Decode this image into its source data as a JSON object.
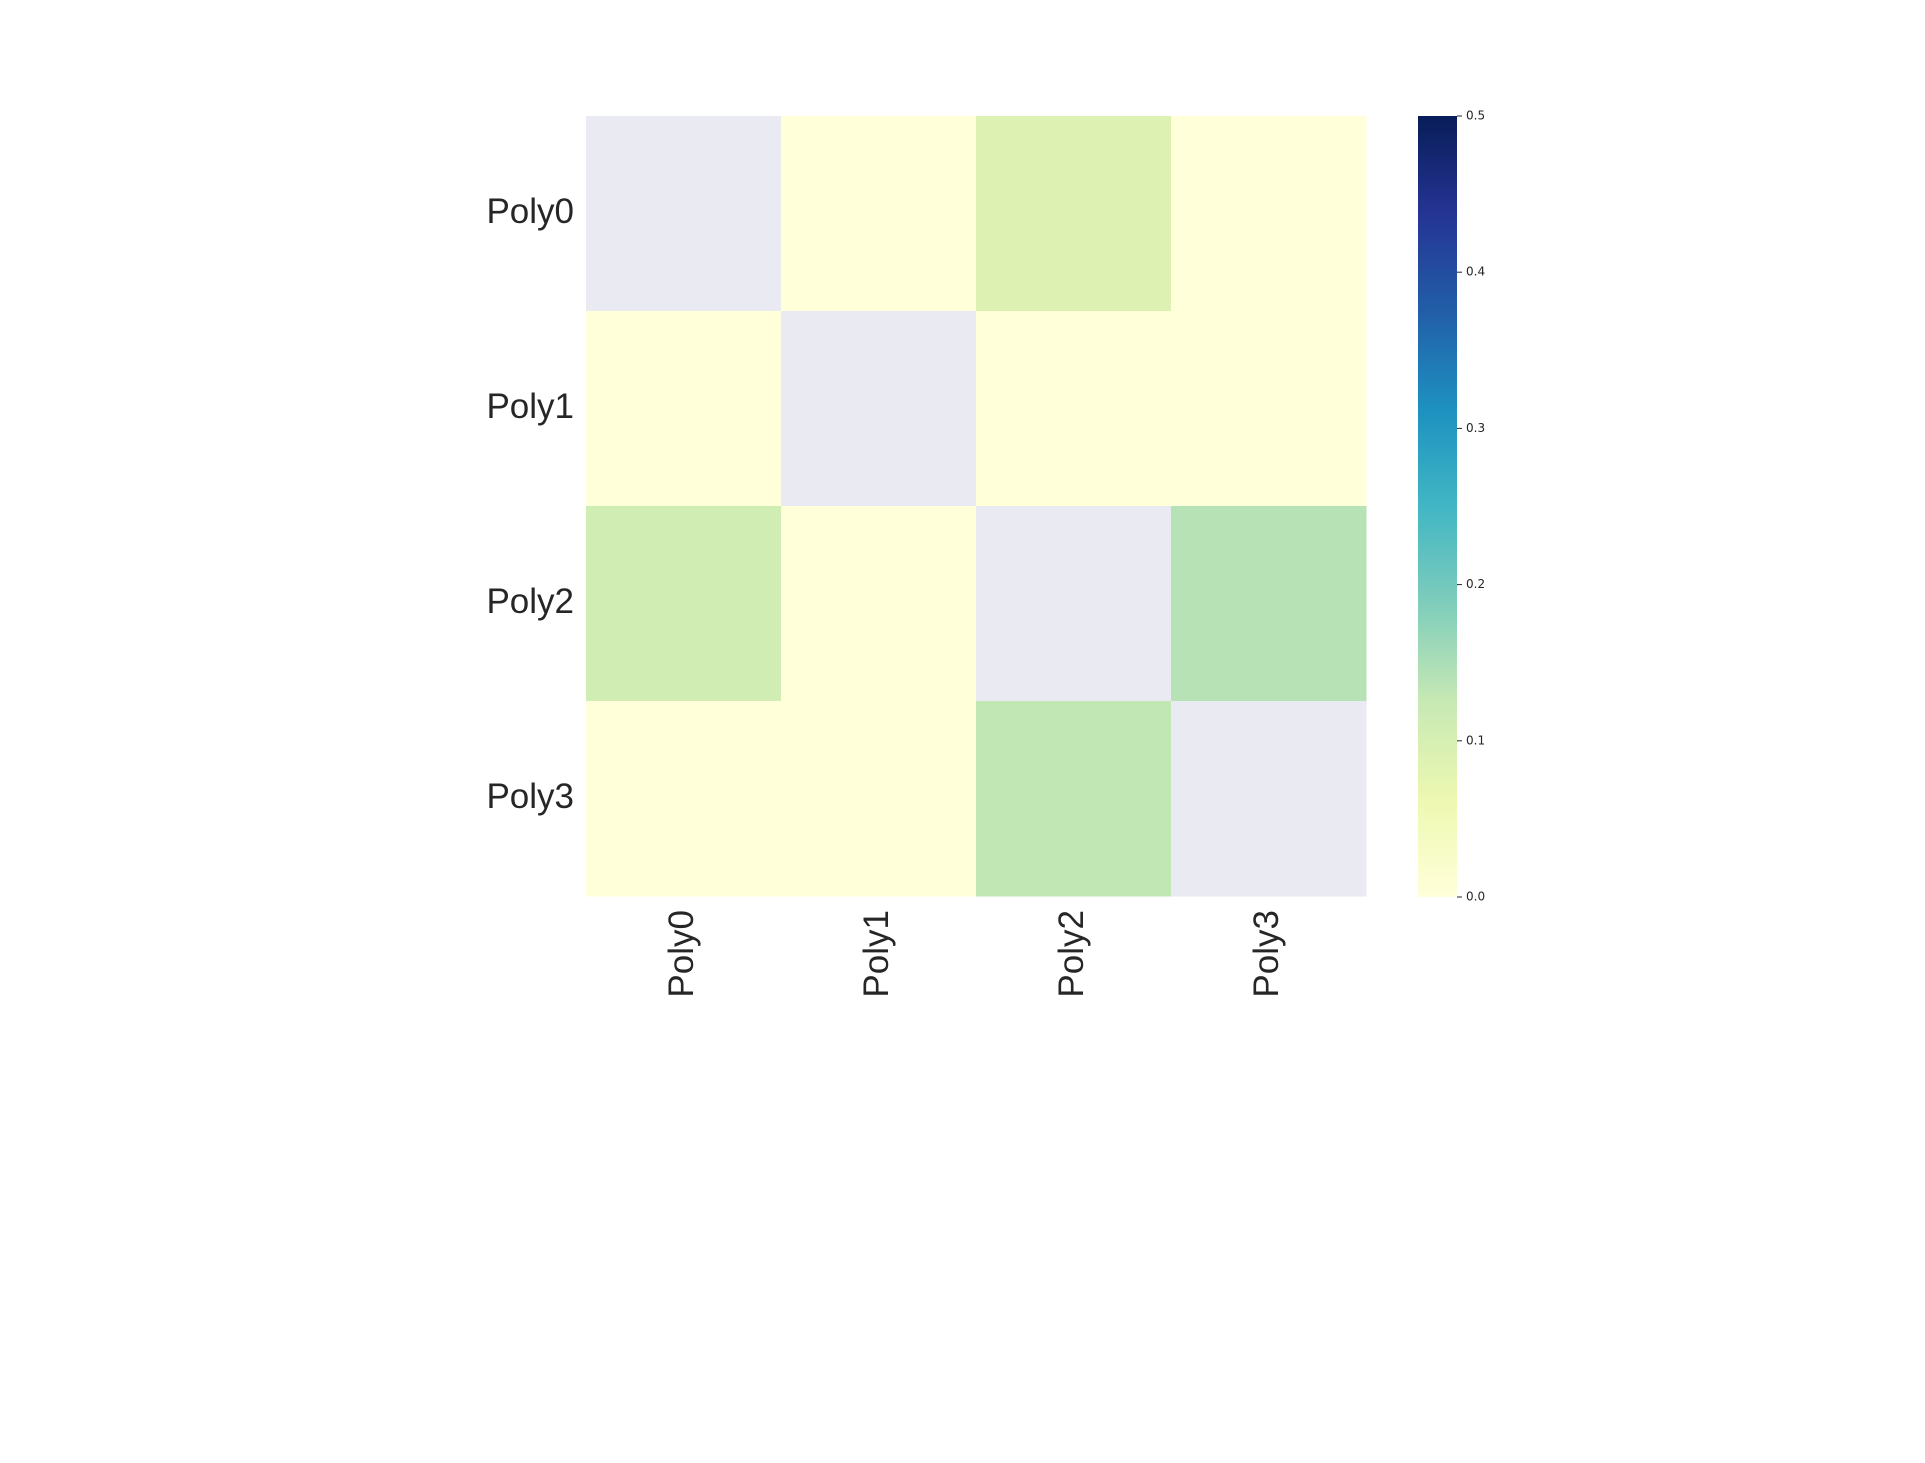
{
  "chart_data": {
    "type": "heatmap",
    "rows": [
      "Poly0",
      "Poly1",
      "Poly2",
      "Poly3"
    ],
    "columns": [
      "Poly0",
      "Poly1",
      "Poly2",
      "Poly3"
    ],
    "values": [
      [
        null,
        0.0,
        0.09,
        0.0
      ],
      [
        0.0,
        null,
        0.0,
        0.0
      ],
      [
        0.11,
        0.0,
        null,
        0.14
      ],
      [
        0.0,
        0.0,
        0.13,
        null
      ]
    ],
    "colormap": "YlGnBu",
    "missing_color": "#eaeaf2",
    "vmin": 0.0,
    "vmax": 0.5,
    "colorbar_ticks": [
      "0.0",
      "0.1",
      "0.2",
      "0.3",
      "0.4",
      "0.5"
    ],
    "title": "",
    "xlabel": "",
    "ylabel": ""
  }
}
